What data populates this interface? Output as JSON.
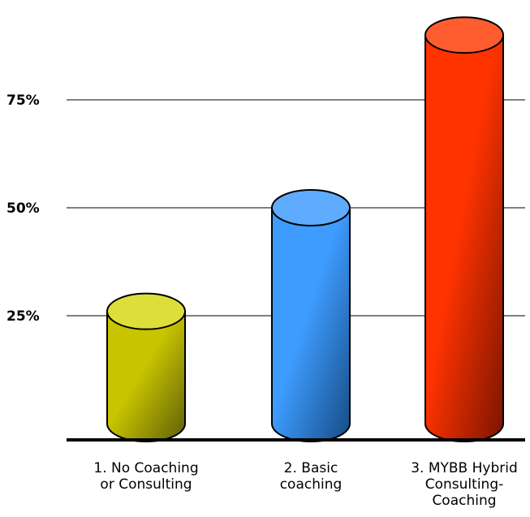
{
  "chart_data": {
    "type": "bar",
    "style": "3d-cylinder",
    "categories": [
      [
        "1. No Coaching",
        "or Consulting"
      ],
      [
        "2. Basic",
        "coaching"
      ],
      [
        "3. MYBB Hybrid",
        "Consulting-",
        "Coaching"
      ]
    ],
    "values": [
      26,
      50,
      90
    ],
    "ylim": [
      0,
      100
    ],
    "yticks": [
      25,
      50,
      75
    ],
    "ytick_labels": [
      "25%",
      "50%",
      "75%"
    ],
    "title": "",
    "xlabel": "",
    "ylabel": "",
    "grid": true,
    "colors": [
      {
        "side_light": "#c8c400",
        "side_dark": "#5e5e08",
        "top": "#dede3a"
      },
      {
        "side_light": "#3e9cff",
        "side_dark": "#164b84",
        "top": "#5eabff"
      },
      {
        "side_light": "#ff3300",
        "side_dark": "#7a1500",
        "top": "#ff5d30"
      }
    ]
  }
}
